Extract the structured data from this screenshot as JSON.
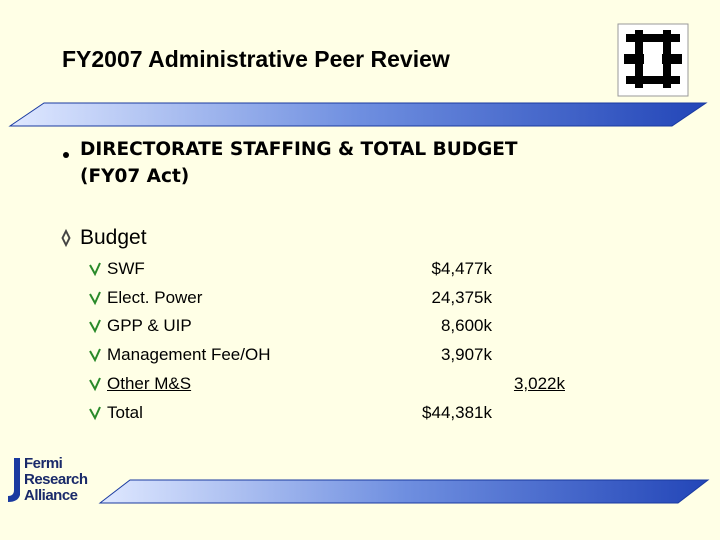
{
  "header": {
    "title": "FY2007 Administrative Peer Review"
  },
  "bullet": {
    "lines": [
      "DIRECTORATE STAFFING & TOTAL  BUDGET",
      "(FY07 Act)"
    ]
  },
  "section": {
    "title": "Budget",
    "items": [
      {
        "label": "SWF",
        "amount": "$4,477k"
      },
      {
        "label": "Elect. Power",
        "amount": "24,375k"
      },
      {
        "label": "GPP & UIP",
        "amount": "8,600k"
      },
      {
        "label": "Management Fee/OH",
        "amount": "3,907k"
      },
      {
        "label": "Other M&S",
        "amount": "3,022k"
      },
      {
        "label": "Total",
        "amount": "$44,381k"
      }
    ]
  },
  "footer": {
    "logo": [
      "Fermi",
      "Research",
      "Alliance"
    ]
  }
}
